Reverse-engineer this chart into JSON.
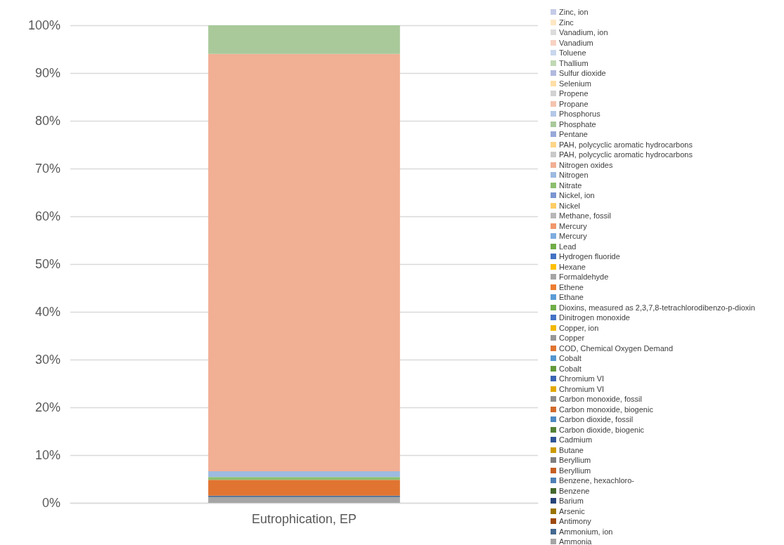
{
  "chart_data": {
    "type": "bar",
    "stacked": true,
    "categories": [
      "Eutrophication, EP"
    ],
    "ylim": [
      0,
      100
    ],
    "yticks": [
      {
        "value": 0,
        "label": "0%"
      },
      {
        "value": 10,
        "label": "10%"
      },
      {
        "value": 20,
        "label": "20%"
      },
      {
        "value": 30,
        "label": "30%"
      },
      {
        "value": 40,
        "label": "40%"
      },
      {
        "value": 50,
        "label": "50%"
      },
      {
        "value": 60,
        "label": "60%"
      },
      {
        "value": 70,
        "label": "70%"
      },
      {
        "value": 80,
        "label": "80%"
      },
      {
        "value": 90,
        "label": "90%"
      },
      {
        "value": 100,
        "label": "100%"
      }
    ],
    "grid": "y",
    "legend": "right",
    "series": [
      {
        "name": "Ammonia",
        "color": "#a5a5a5",
        "values": [
          1.2
        ]
      },
      {
        "name": "Ammonium, ion",
        "color": "#44688f",
        "values": [
          0.3
        ]
      },
      {
        "name": "Antimony",
        "color": "#9e480e",
        "values": [
          0
        ]
      },
      {
        "name": "Arsenic",
        "color": "#997300",
        "values": [
          0
        ]
      },
      {
        "name": "Barium",
        "color": "#264478",
        "values": [
          0
        ]
      },
      {
        "name": "Benzene",
        "color": "#43682b",
        "values": [
          0
        ]
      },
      {
        "name": "Benzene, hexachloro-",
        "color": "#4f81b5",
        "values": [
          0
        ]
      },
      {
        "name": "Beryllium",
        "color": "#c65f22",
        "values": [
          0
        ]
      },
      {
        "name": "Beryllium",
        "color": "#7f7f7f",
        "values": [
          0
        ]
      },
      {
        "name": "Butane",
        "color": "#cc9a00",
        "values": [
          0
        ]
      },
      {
        "name": "Cadmium",
        "color": "#2f5597",
        "values": [
          0
        ]
      },
      {
        "name": "Carbon dioxide, biogenic",
        "color": "#548235",
        "values": [
          0
        ]
      },
      {
        "name": "Carbon dioxide, fossil",
        "color": "#4e8ac4",
        "values": [
          0
        ]
      },
      {
        "name": "Carbon monoxide, biogenic",
        "color": "#d26a2b",
        "values": [
          0
        ]
      },
      {
        "name": "Carbon monoxide, fossil",
        "color": "#8c8c8c",
        "values": [
          0
        ]
      },
      {
        "name": "Chromium VI",
        "color": "#e3a800",
        "values": [
          0
        ]
      },
      {
        "name": "Chromium VI",
        "color": "#3c65b3",
        "values": [
          0
        ]
      },
      {
        "name": "Cobalt",
        "color": "#639a3c",
        "values": [
          0
        ]
      },
      {
        "name": "Cobalt",
        "color": "#5596cf",
        "values": [
          0
        ]
      },
      {
        "name": "COD, Chemical Oxygen Demand",
        "color": "#e07430",
        "values": [
          3.3
        ]
      },
      {
        "name": "Copper",
        "color": "#979797",
        "values": [
          0
        ]
      },
      {
        "name": "Copper, ion",
        "color": "#f2b800",
        "values": [
          0
        ]
      },
      {
        "name": "Dinitrogen monoxide",
        "color": "#4472c4",
        "values": [
          0
        ]
      },
      {
        "name": "Dioxins, measured as 2,3,7,8-tetrachlorodibenzo-p-dioxin",
        "color": "#70ad47",
        "values": [
          0
        ]
      },
      {
        "name": "Ethane",
        "color": "#5b9bd5",
        "values": [
          0
        ]
      },
      {
        "name": "Ethene",
        "color": "#ed7d31",
        "values": [
          0
        ]
      },
      {
        "name": "Formaldehyde",
        "color": "#a5a5a5",
        "values": [
          0
        ]
      },
      {
        "name": "Hexane",
        "color": "#ffc000",
        "values": [
          0
        ]
      },
      {
        "name": "Hydrogen fluoride",
        "color": "#4472c4",
        "values": [
          0
        ]
      },
      {
        "name": "Lead",
        "color": "#70ad47",
        "values": [
          0
        ]
      },
      {
        "name": "Mercury",
        "color": "#7eacdf",
        "values": [
          0
        ]
      },
      {
        "name": "Mercury",
        "color": "#f1976c",
        "values": [
          0
        ]
      },
      {
        "name": "Methane, fossil",
        "color": "#b7b7b7",
        "values": [
          0
        ]
      },
      {
        "name": "Nickel",
        "color": "#ffcd66",
        "values": [
          0
        ]
      },
      {
        "name": "Nickel, ion",
        "color": "#7c95d0",
        "values": [
          0
        ]
      },
      {
        "name": "Nitrate",
        "color": "#8dbf6f",
        "values": [
          0.6
        ]
      },
      {
        "name": "Nitrogen",
        "color": "#9dbae0",
        "values": [
          1.2
        ]
      },
      {
        "name": "Nitrogen oxides",
        "color": "#f1af94",
        "values": [
          87.4
        ]
      },
      {
        "name": "PAH, polycyclic aromatic hydrocarbons",
        "color": "#c9c9c9",
        "values": [
          0
        ]
      },
      {
        "name": "PAH, polycyclic aromatic hydrocarbons",
        "color": "#ffd587",
        "values": [
          0
        ]
      },
      {
        "name": "Pentane",
        "color": "#98a9d9",
        "values": [
          0
        ]
      },
      {
        "name": "Phosphate",
        "color": "#a9c99a",
        "values": [
          6.0
        ]
      },
      {
        "name": "Phosphorus",
        "color": "#b4c8e8",
        "values": [
          0
        ]
      },
      {
        "name": "Propane",
        "color": "#f5c3ae",
        "values": [
          0
        ]
      },
      {
        "name": "Propene",
        "color": "#d2d2d2",
        "values": [
          0
        ]
      },
      {
        "name": "Selenium",
        "color": "#ffdea7",
        "values": [
          0
        ]
      },
      {
        "name": "Sulfur dioxide",
        "color": "#b0b9df",
        "values": [
          0
        ]
      },
      {
        "name": "Thallium",
        "color": "#c1d8b4",
        "values": [
          0
        ]
      },
      {
        "name": "Toluene",
        "color": "#c9d7ee",
        "values": [
          0
        ]
      },
      {
        "name": "Vanadium",
        "color": "#f7d2c3",
        "values": [
          0
        ]
      },
      {
        "name": "Vanadium, ion",
        "color": "#dcdcdc",
        "values": [
          0
        ]
      },
      {
        "name": "Zinc",
        "color": "#ffe7c4",
        "values": [
          0
        ]
      },
      {
        "name": "Zinc, ion",
        "color": "#c5cbe7",
        "values": [
          0
        ]
      }
    ]
  }
}
